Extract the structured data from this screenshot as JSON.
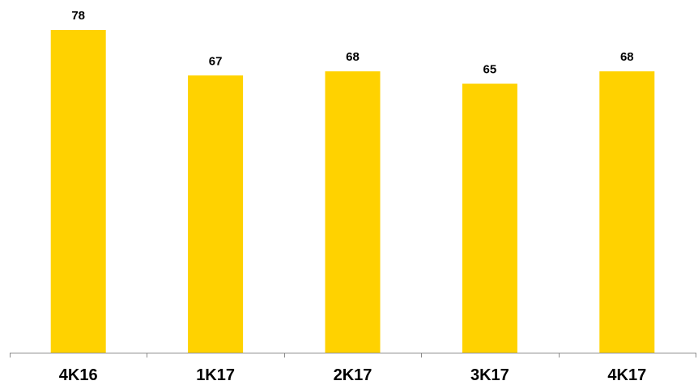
{
  "chart_data": {
    "type": "bar",
    "categories": [
      "4K16",
      "1K17",
      "2K17",
      "3K17",
      "4K17"
    ],
    "values": [
      78,
      67,
      68,
      65,
      68
    ],
    "data_labels": [
      "78",
      "67",
      "68",
      "65",
      "68"
    ],
    "title": "",
    "xlabel": "",
    "ylabel": "",
    "ylim": [
      0,
      78
    ],
    "grid": false,
    "legend": "none",
    "bar_color": "#FFD200"
  }
}
